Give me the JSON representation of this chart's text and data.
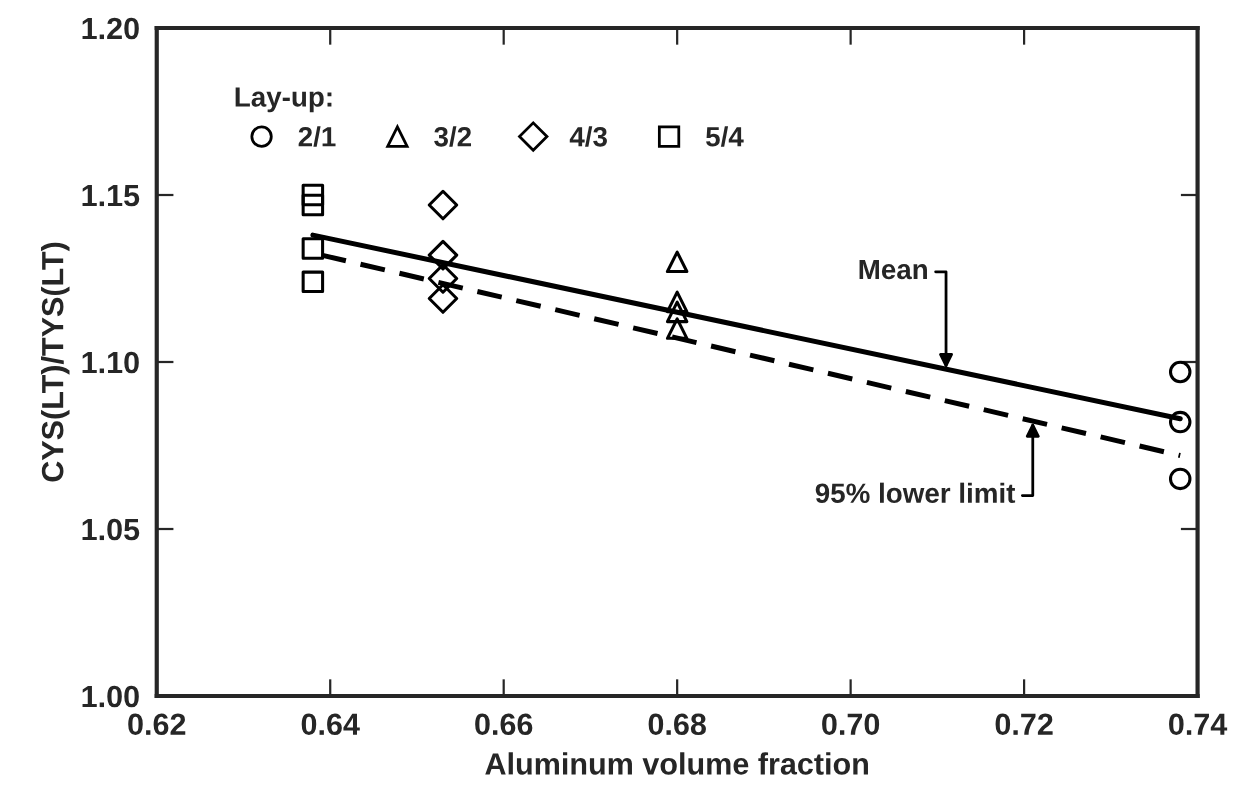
{
  "chart_data": {
    "type": "scatter",
    "xlabel": "Aluminum volume fraction",
    "ylabel": "CYS(LT)/TYS(LT)",
    "legend_title": "Lay-up:",
    "xlim": [
      0.62,
      0.74
    ],
    "xticks": [
      0.62,
      0.64,
      0.66,
      0.68,
      {
        "value": 0.7,
        "label": "0.70"
      },
      0.72,
      0.74
    ],
    "ylim": [
      1.0,
      1.2
    ],
    "yticks": [
      {
        "value": 1.0,
        "label": "1.00"
      },
      1.05,
      {
        "value": 1.1,
        "label": "1.10"
      },
      1.15,
      {
        "value": 1.2,
        "label": "1.20"
      }
    ],
    "grid": false,
    "legend": "top left",
    "series": [
      {
        "name": "2/1",
        "color": "#000000",
        "marker": "circle",
        "x": [
          0.738,
          0.738,
          0.738
        ],
        "values": [
          1.097,
          1.082,
          1.065
        ]
      },
      {
        "name": "3/2",
        "color": "#000000",
        "marker": "triangle",
        "x": [
          0.68,
          0.68,
          0.68,
          0.68
        ],
        "values": [
          1.13,
          1.118,
          1.115,
          1.11
        ]
      },
      {
        "name": "4/3",
        "color": "#000000",
        "marker": "diamond",
        "x": [
          0.653,
          0.653,
          0.653,
          0.653
        ],
        "values": [
          1.147,
          1.132,
          1.125,
          1.119
        ]
      },
      {
        "name": "5/4",
        "color": "#000000",
        "marker": "square",
        "x": [
          0.638,
          0.638,
          0.638,
          0.638
        ],
        "values": [
          1.15,
          1.147,
          1.134,
          1.124
        ]
      },
      {
        "type": "line",
        "color": "#000000",
        "line_style": "solid",
        "x": [
          0.638,
          0.738
        ],
        "values": [
          1.138,
          1.083
        ]
      },
      {
        "type": "line",
        "color": "#000000",
        "line_style": "dashed",
        "x": [
          0.639,
          0.738
        ],
        "values": [
          1.132,
          1.072
        ]
      }
    ],
    "annotations": [
      {
        "text": "Mean",
        "x": 0.711,
        "y": 1.098
      },
      {
        "text": "95% lower limit",
        "x": 0.721,
        "y": 1.082
      }
    ]
  }
}
